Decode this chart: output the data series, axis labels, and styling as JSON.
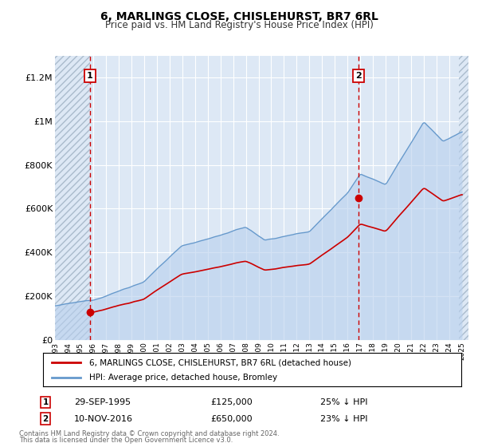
{
  "title": "6, MARLINGS CLOSE, CHISLEHURST, BR7 6RL",
  "subtitle": "Price paid vs. HM Land Registry's House Price Index (HPI)",
  "ylim": [
    0,
    1300000
  ],
  "xlim": [
    1993.0,
    2025.5
  ],
  "yticks": [
    0,
    200000,
    400000,
    600000,
    800000,
    1000000,
    1200000
  ],
  "ytick_labels": [
    "£0",
    "£200K",
    "£400K",
    "£600K",
    "£800K",
    "£1M",
    "£1.2M"
  ],
  "xticks": [
    1993,
    1994,
    1995,
    1996,
    1997,
    1998,
    1999,
    2000,
    2001,
    2002,
    2003,
    2004,
    2005,
    2006,
    2007,
    2008,
    2009,
    2010,
    2011,
    2012,
    2013,
    2014,
    2015,
    2016,
    2017,
    2018,
    2019,
    2020,
    2021,
    2022,
    2023,
    2024,
    2025
  ],
  "bg_color": "#dde8f5",
  "grid_color": "#ffffff",
  "hatch_color": "#c8d4e8",
  "sale1_x": 1995.75,
  "sale1_y": 125000,
  "sale2_x": 2016.86,
  "sale2_y": 650000,
  "red_line_color": "#cc0000",
  "blue_line_color": "#6699cc",
  "blue_fill_color": "#b8d0ee",
  "legend_line1": "6, MARLINGS CLOSE, CHISLEHURST, BR7 6RL (detached house)",
  "legend_line2": "HPI: Average price, detached house, Bromley",
  "sale1_date": "29-SEP-1995",
  "sale1_price": "£125,000",
  "sale1_hpi": "25% ↓ HPI",
  "sale2_date": "10-NOV-2016",
  "sale2_price": "£650,000",
  "sale2_hpi": "23% ↓ HPI",
  "footer1": "Contains HM Land Registry data © Crown copyright and database right 2024.",
  "footer2": "This data is licensed under the Open Government Licence v3.0."
}
